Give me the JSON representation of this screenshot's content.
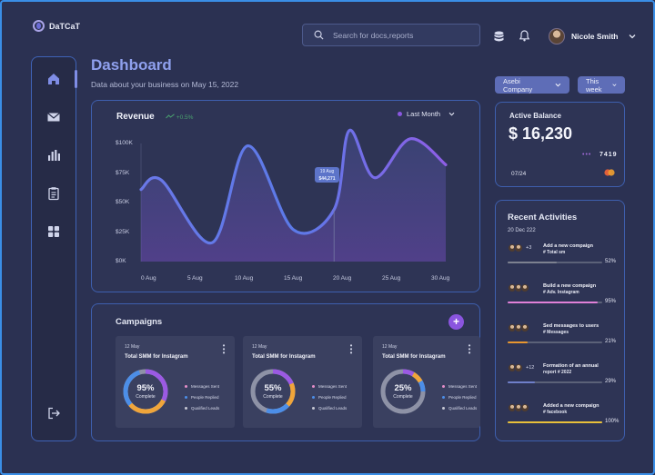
{
  "app": {
    "logo_text": "DaTCaT"
  },
  "header": {
    "search_placeholder": "Search for docs,reports",
    "user_name": "Nicole Smith"
  },
  "page": {
    "title": "Dashboard",
    "subtitle": "Data about your business on May 15, 2022",
    "company_select": "Asebi Company",
    "period_select": "This week"
  },
  "revenue": {
    "title": "Revenue",
    "change": "+0.5%",
    "legend": "Last Month",
    "tooltip_date": "19 Aug",
    "tooltip_value": "$44,271"
  },
  "chart_data": {
    "type": "area",
    "title": "Revenue",
    "x_ticks": [
      "0 Aug",
      "5 Aug",
      "10 Aug",
      "15 Aug",
      "20 Aug",
      "25 Aug",
      "30 Aug"
    ],
    "y_ticks": [
      "$100K",
      "$75K",
      "$50K",
      "$25K",
      "$0K"
    ],
    "ylim": [
      0,
      100000
    ],
    "xlim": [
      0,
      30
    ],
    "grid": false,
    "series": [
      {
        "name": "Last Month",
        "x": [
          0,
          2,
          7,
          10.5,
          15,
          19,
          20.5,
          23,
          26.5,
          30
        ],
        "values": [
          61000,
          69000,
          16000,
          98000,
          27000,
          44000,
          111000,
          71000,
          104000,
          82000
        ]
      }
    ],
    "colors": {
      "line_start": "#6a78e8",
      "line_end": "#8e5ee6",
      "accent": "#8a57e0"
    }
  },
  "balance": {
    "title": "Active Balance",
    "value": "$ 16,230",
    "masked": "•••",
    "last_digits": "7419",
    "expiry": "07/24"
  },
  "activities": {
    "title": "Recent Activities",
    "date": "20 Dec 222",
    "items": [
      {
        "count": "+3",
        "text": "Add a new compaign",
        "tag": "# Total sm",
        "pct": "52%",
        "fill": 0.52,
        "color": "#7d8190"
      },
      {
        "count": "",
        "text": "Build a new compaign",
        "tag": "# Adv. Instagram",
        "pct": "95%",
        "fill": 0.95,
        "color": "#e080d8"
      },
      {
        "count": "",
        "text": "Sed messages to users",
        "tag": "# Messages",
        "pct": "21%",
        "fill": 0.21,
        "color": "#e8962f"
      },
      {
        "count": "+12",
        "text": "Formation of an annual",
        "tag": "report # 2022",
        "pct": "29%",
        "fill": 0.29,
        "color": "#6f7fc9"
      },
      {
        "count": "",
        "text": "Added a new compaign",
        "tag": "# facebook",
        "pct": "100%",
        "fill": 1.0,
        "color": "#e8c03a"
      }
    ]
  },
  "campaigns": {
    "title": "Campaigns",
    "add_symbol": "+",
    "legend": [
      "Messages Sent",
      "People Replied",
      "Qualified Leads"
    ],
    "legend_colors": [
      "#e58ec9",
      "#4c8ee8",
      "#c7c9d4"
    ],
    "cards": [
      {
        "date": "12 May",
        "name": "Total SMM for Instagram",
        "pct": "95%",
        "fill": 0.95,
        "label": "Complete"
      },
      {
        "date": "12 May",
        "name": "Total SMM for Instagram",
        "pct": "55%",
        "fill": 0.55,
        "label": "Complete"
      },
      {
        "date": "12 May",
        "name": "Total SMM for Instagram",
        "pct": "25%",
        "fill": 0.25,
        "label": "Complete"
      }
    ]
  }
}
